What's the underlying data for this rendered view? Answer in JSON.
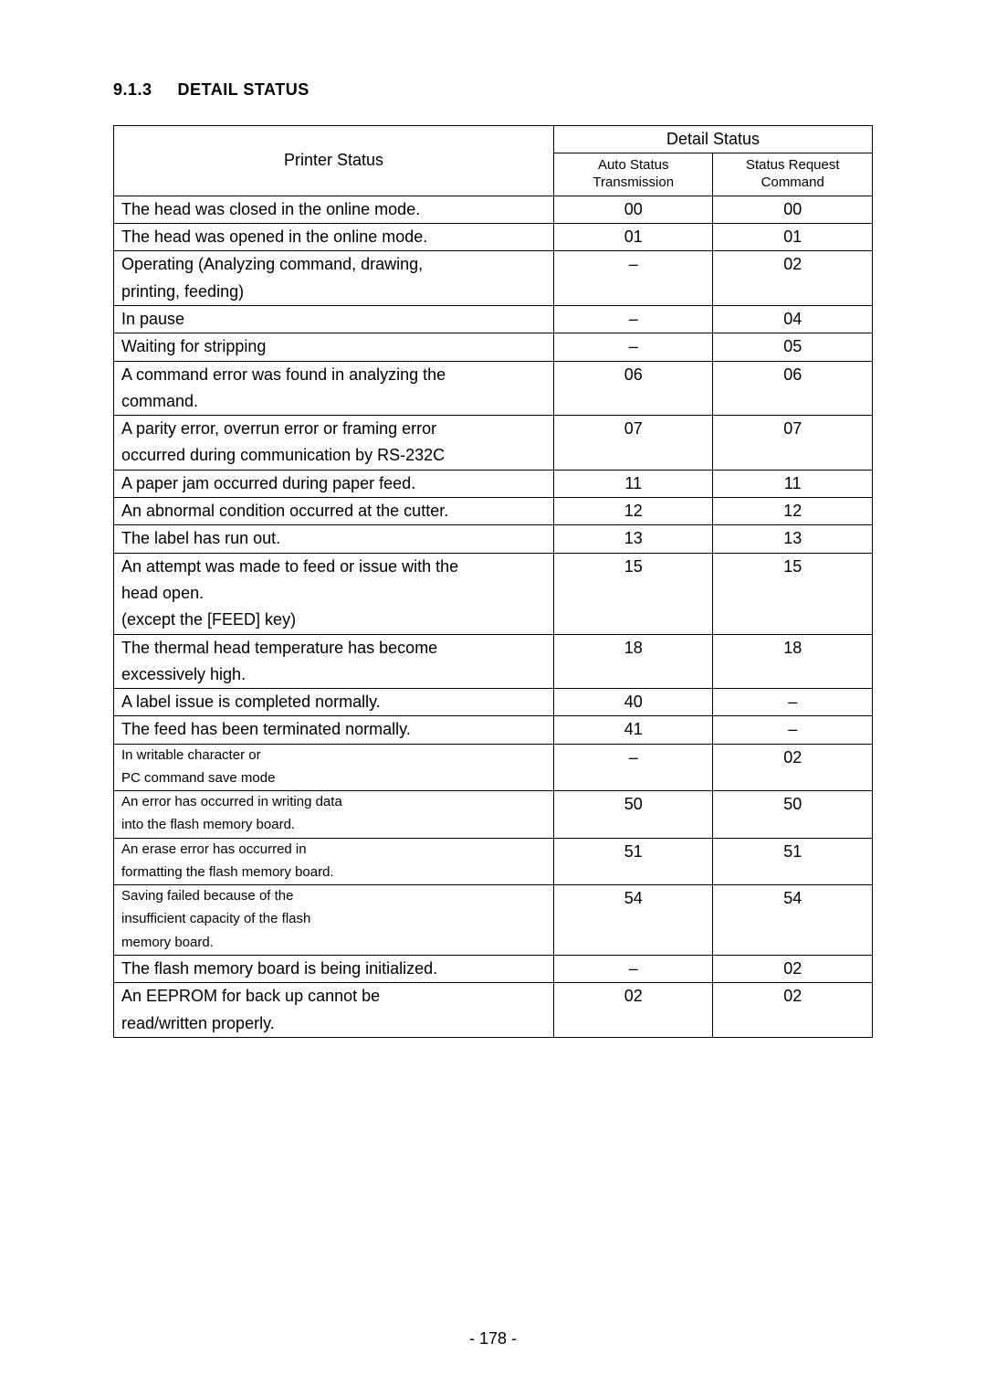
{
  "heading": {
    "number": "9.1.3",
    "title": "DETAIL STATUS"
  },
  "table": {
    "header": {
      "printer_status": "Printer Status",
      "detail_status": "Detail Status",
      "auto_line1": "Auto Status",
      "auto_line2": "Transmission",
      "req_line1": "Status Request",
      "req_line2": "Command"
    },
    "rows": [
      {
        "lines": [
          "The head was closed in the online mode."
        ],
        "auto": "00",
        "req": "00",
        "small": false
      },
      {
        "lines": [
          "The head was opened in the online mode."
        ],
        "auto": "01",
        "req": "01",
        "small": false
      },
      {
        "lines": [
          "Operating (Analyzing command, drawing,",
          "printing, feeding)"
        ],
        "auto": "–",
        "req": "02",
        "small": false
      },
      {
        "lines": [
          "In pause"
        ],
        "auto": "–",
        "req": "04",
        "small": false
      },
      {
        "lines": [
          "Waiting for stripping"
        ],
        "auto": "–",
        "req": "05",
        "small": false
      },
      {
        "lines": [
          "A command error was found in analyzing the",
          "command."
        ],
        "auto": "06",
        "req": "06",
        "small": false
      },
      {
        "lines": [
          "A parity error, overrun error or framing error",
          "occurred during communication by RS-232C"
        ],
        "auto": "07",
        "req": "07",
        "small": false
      },
      {
        "lines": [
          "A paper jam occurred during paper feed."
        ],
        "auto": "11",
        "req": "11",
        "small": false
      },
      {
        "lines": [
          "An abnormal condition occurred at the cutter."
        ],
        "auto": "12",
        "req": "12",
        "small": false
      },
      {
        "lines": [
          "The label has run out."
        ],
        "auto": "13",
        "req": "13",
        "small": false
      },
      {
        "lines": [
          "An attempt was made to feed or issue with the",
          "head open.",
          "(except the [FEED] key)"
        ],
        "auto": "15",
        "req": "15",
        "small": false
      },
      {
        "lines": [
          "The thermal head temperature has become",
          "excessively high."
        ],
        "auto": "18",
        "req": "18",
        "small": false
      },
      {
        "lines": [
          "A label issue is completed normally."
        ],
        "auto": "40",
        "req": "–",
        "small": false
      },
      {
        "lines": [
          "The feed has been terminated normally."
        ],
        "auto": "41",
        "req": "–",
        "small": false
      },
      {
        "lines": [
          "In writable character or",
          "PC command save mode"
        ],
        "auto": "–",
        "req": "02",
        "small": true
      },
      {
        "lines": [
          "An error has occurred in writing data",
          "into the flash memory board."
        ],
        "auto": "50",
        "req": "50",
        "small": true
      },
      {
        "lines": [
          "An erase error has occurred in",
          "formatting the flash memory board."
        ],
        "auto": "51",
        "req": "51",
        "small": true
      },
      {
        "lines": [
          "Saving failed because of the",
          "insufficient capacity of the flash",
          "memory board."
        ],
        "auto": "54",
        "req": "54",
        "small": true
      },
      {
        "lines": [
          "The flash memory board is being initialized."
        ],
        "auto": "–",
        "req": "02",
        "small": false
      },
      {
        "lines": [
          "An EEPROM for back up cannot be",
          "read/written properly."
        ],
        "auto": "02",
        "req": "02",
        "small": false
      }
    ]
  },
  "page_number": "- 178 -"
}
